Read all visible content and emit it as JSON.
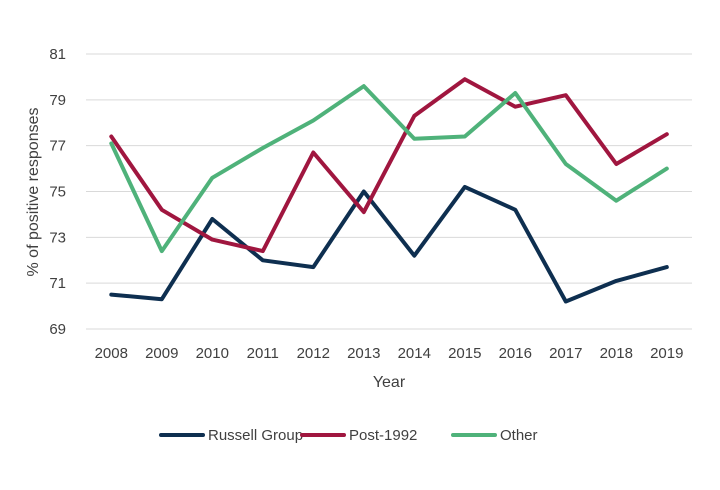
{
  "chart_data": {
    "type": "line",
    "title": "",
    "xlabel": "Year",
    "ylabel": "% of positive responses",
    "x": [
      "2008",
      "2009",
      "2010",
      "2011",
      "2012",
      "2013",
      "2014",
      "2015",
      "2016",
      "2017",
      "2018",
      "2019"
    ],
    "y_ticks": [
      "69",
      "71",
      "73",
      "75",
      "77",
      "79",
      "81"
    ],
    "ylim": [
      69,
      81
    ],
    "grid": "horizontal",
    "legend_position": "bottom",
    "series": [
      {
        "name": "Russell Group",
        "color": "#0e2f50",
        "values": [
          70.5,
          70.3,
          73.8,
          72.0,
          71.7,
          75.0,
          72.2,
          75.2,
          74.2,
          70.2,
          71.1,
          71.7
        ]
      },
      {
        "name": "Post-1992",
        "color": "#a0163f",
        "values": [
          77.4,
          74.2,
          72.9,
          72.4,
          76.7,
          74.1,
          78.3,
          79.9,
          78.7,
          79.2,
          76.2,
          77.5
        ]
      },
      {
        "name": "Other",
        "color": "#4fb27a",
        "values": [
          77.1,
          72.4,
          75.6,
          76.9,
          78.1,
          79.6,
          77.3,
          77.4,
          79.3,
          76.2,
          74.6,
          76.0
        ]
      }
    ]
  }
}
